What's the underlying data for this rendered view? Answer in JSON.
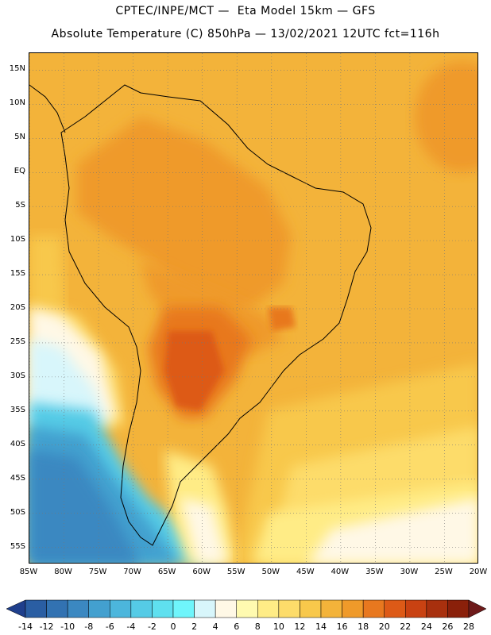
{
  "header": {
    "line1": "CPTEC/INPE/MCT —  Eta Model 15km — GFS",
    "line2": "Absolute Temperature (C) 850hPa — 13/02/2021 12UTC fct=116h"
  },
  "map": {
    "lon_range": [
      -85,
      -20
    ],
    "lat_range": [
      -57.5,
      17.5
    ],
    "lat_labels": [
      "15N",
      "10N",
      "5N",
      "EQ",
      "5S",
      "10S",
      "15S",
      "20S",
      "25S",
      "30S",
      "35S",
      "40S",
      "45S",
      "50S",
      "55S"
    ],
    "lat_values": [
      15,
      10,
      5,
      0,
      -5,
      -10,
      -15,
      -20,
      -25,
      -30,
      -35,
      -40,
      -45,
      -50,
      -55
    ],
    "lon_labels": [
      "85W",
      "80W",
      "75W",
      "70W",
      "65W",
      "60W",
      "55W",
      "50W",
      "45W",
      "40W",
      "35W",
      "30W",
      "25W",
      "20W"
    ],
    "lon_values": [
      -85,
      -80,
      -75,
      -70,
      -65,
      -60,
      -55,
      -50,
      -45,
      -40,
      -35,
      -30,
      -25,
      -20
    ],
    "grid": "dotted"
  },
  "colorbar": {
    "labels": [
      "-14",
      "-12",
      "-10",
      "-8",
      "-6",
      "-4",
      "-2",
      "0",
      "2",
      "4",
      "6",
      "8",
      "10",
      "12",
      "14",
      "16",
      "18",
      "20",
      "22",
      "24",
      "26",
      "28"
    ],
    "colors": [
      "#1f3f8c",
      "#2a5ea3",
      "#3272b2",
      "#3b88c1",
      "#43a0cf",
      "#4cb6dc",
      "#55cbe6",
      "#5fe0ef",
      "#6ff5fb",
      "#d8f6fb",
      "#fff8e6",
      "#fffab0",
      "#ffec86",
      "#fddc6a",
      "#f8c84b",
      "#f3b33a",
      "#ef9a2a",
      "#e8781f",
      "#dd5a17",
      "#c94212",
      "#a8300e",
      "#8a200a",
      "#6e1a1a"
    ]
  }
}
